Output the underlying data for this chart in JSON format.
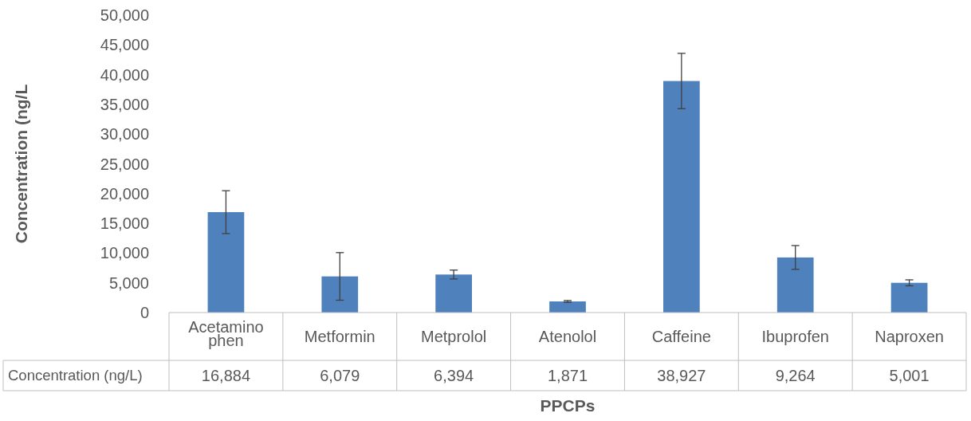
{
  "chart_data": {
    "type": "bar",
    "xlabel": "PPCPs",
    "ylabel": "Concentration (ng/L",
    "categories": [
      "Acetamino phen",
      "Metformin",
      "Metprolol",
      "Atenolol",
      "Caffeine",
      "Ibuprofen",
      "Naproxen"
    ],
    "series": [
      {
        "name": "Concentration (ng/L)",
        "color": "#4f81bd",
        "values": [
          16884,
          6079,
          6394,
          1871,
          38927,
          9264,
          5001
        ],
        "errors": [
          3600,
          4000,
          750,
          150,
          4650,
          2000,
          500
        ],
        "value_labels": [
          "16,884",
          "6,079",
          "6,394",
          "1,871",
          "38,927",
          "9,264",
          "5,001"
        ]
      }
    ],
    "ylim": [
      0,
      50000
    ],
    "yticks": [
      {
        "value": 0,
        "label": "0"
      },
      {
        "value": 5000,
        "label": "5,000"
      },
      {
        "value": 10000,
        "label": "10,000"
      },
      {
        "value": 15000,
        "label": "15,000"
      },
      {
        "value": 20000,
        "label": "20,000"
      },
      {
        "value": 25000,
        "label": "25,000"
      },
      {
        "value": 30000,
        "label": "30,000"
      },
      {
        "value": 35000,
        "label": "35,000"
      },
      {
        "value": 40000,
        "label": "40,000"
      },
      {
        "value": 45000,
        "label": "45,000"
      },
      {
        "value": 50000,
        "label": "50,000"
      }
    ],
    "grid": false
  }
}
